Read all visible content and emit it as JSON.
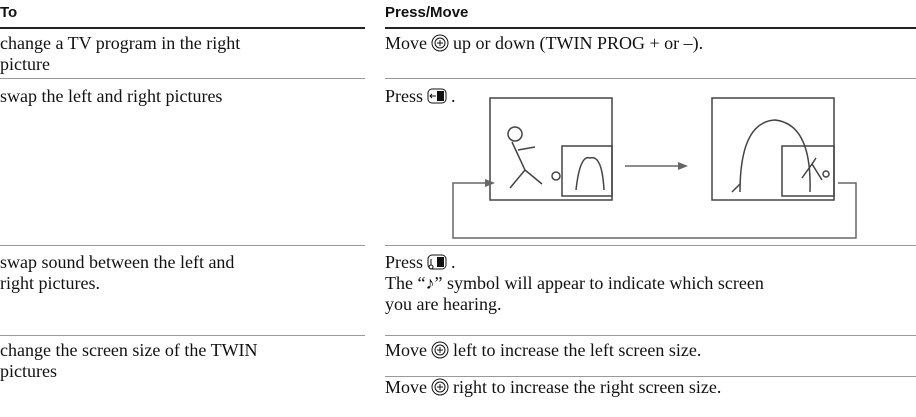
{
  "header": {
    "col1": "To",
    "col2": "Press/Move"
  },
  "rows": [
    {
      "to": [
        "change a TV program in the right",
        "picture"
      ],
      "press": [
        {
          "before": "Move",
          "after": "up or down (TWIN PROG + or –)."
        }
      ]
    },
    {
      "to": [
        "swap the left and right pictures"
      ],
      "press": [
        {
          "before": "Press",
          "after": "."
        }
      ]
    },
    {
      "to": [
        "swap sound between the left and",
        "right pictures."
      ],
      "press": [
        {
          "before": "Press",
          "after": "."
        }
      ],
      "note": [
        "The “♪” symbol will appear to indicate which screen",
        "you are hearing."
      ]
    },
    {
      "to": [
        "change the screen size of the TWIN",
        "pictures"
      ],
      "press": [
        {
          "before": "Move",
          "after": "left to increase the left screen size."
        },
        {
          "before": "Move",
          "after": "right to increase the right screen size."
        }
      ]
    }
  ]
}
